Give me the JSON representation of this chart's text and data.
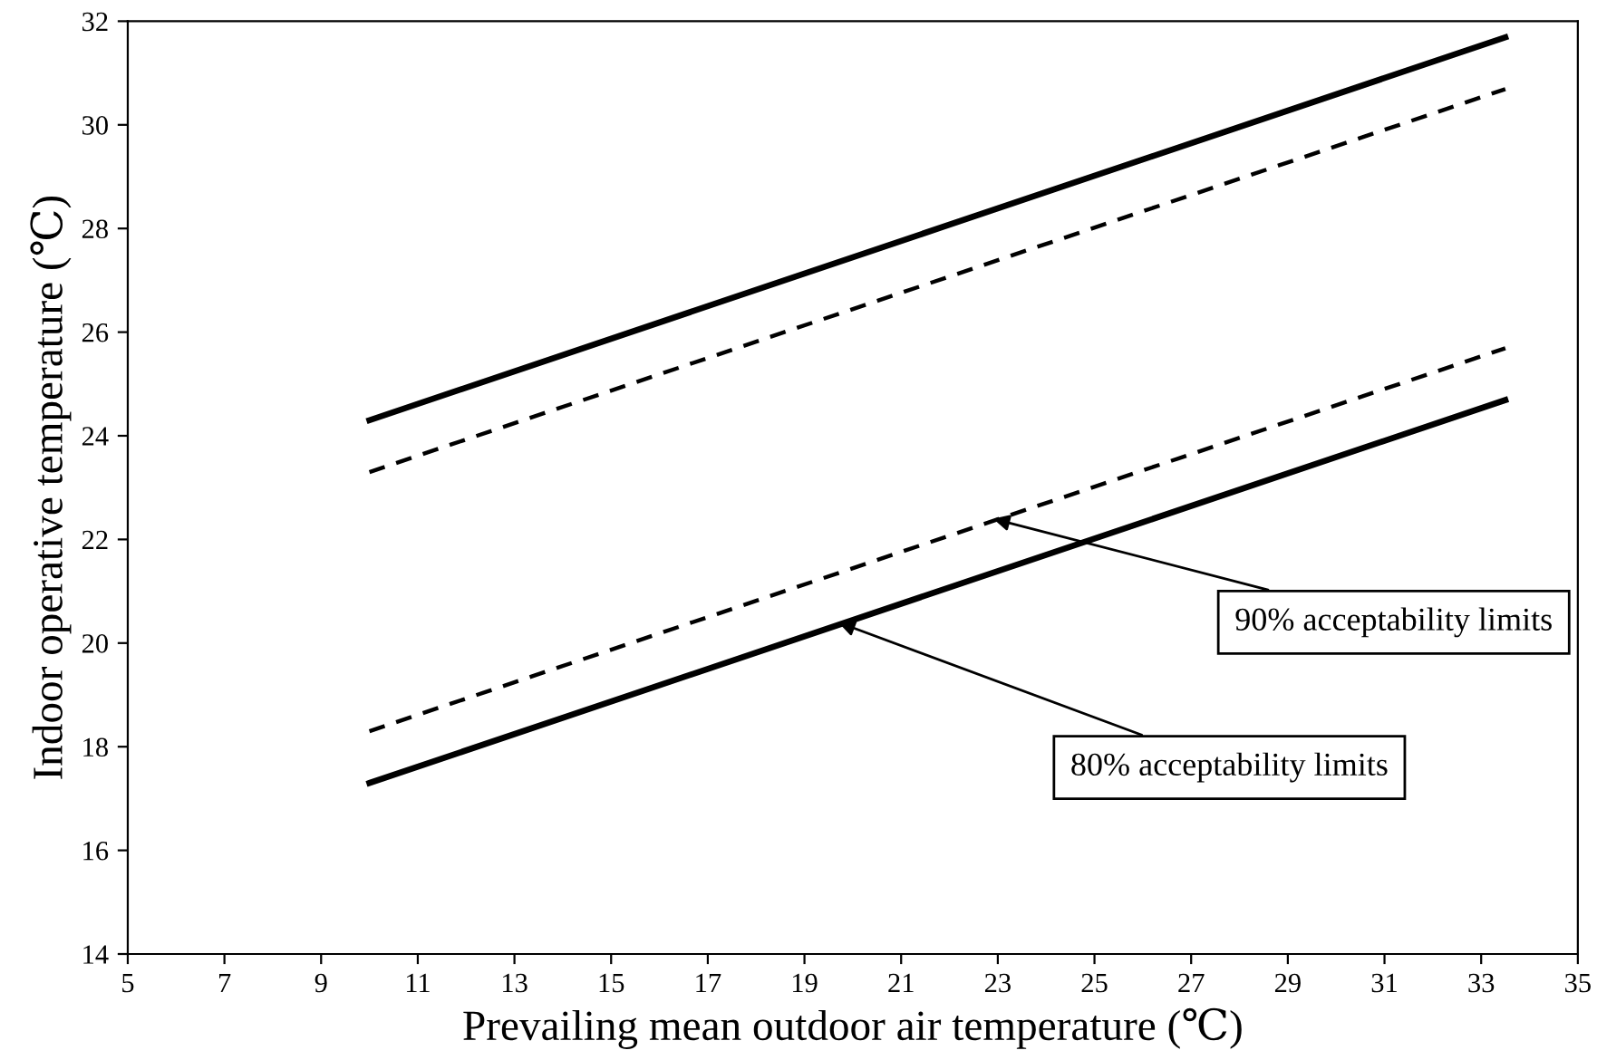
{
  "chart_data": {
    "type": "line",
    "xlabel": "Prevailing mean outdoor air temperature (℃)",
    "ylabel": "Indoor operative temperature (℃)",
    "x": [
      10,
      33.5
    ],
    "series": [
      {
        "values": [
          24.3,
          31.69
        ],
        "color": "#000000",
        "line_style": "solid"
      },
      {
        "values": [
          23.3,
          30.69
        ],
        "color": "#000000",
        "line_style": "dashed"
      },
      {
        "values": [
          18.3,
          25.69
        ],
        "color": "#000000",
        "line_style": "dashed"
      },
      {
        "values": [
          17.3,
          24.69
        ],
        "color": "#000000",
        "line_style": "solid"
      }
    ],
    "annotations": [
      {
        "text": "90% acceptability limits",
        "x": 22.9,
        "y": 22.4
      },
      {
        "text": "80% acceptability limits",
        "x": 19.7,
        "y": 20.4
      }
    ],
    "xlim": [
      5,
      35
    ],
    "xticks": [
      5,
      7,
      9,
      11,
      13,
      15,
      17,
      19,
      21,
      23,
      25,
      27,
      29,
      31,
      33,
      35
    ],
    "ylim": [
      14,
      32
    ],
    "yticks": [
      14,
      16,
      18,
      20,
      22,
      24,
      26,
      28,
      30,
      32
    ],
    "grid": false,
    "legend": false,
    "marker": "none"
  }
}
